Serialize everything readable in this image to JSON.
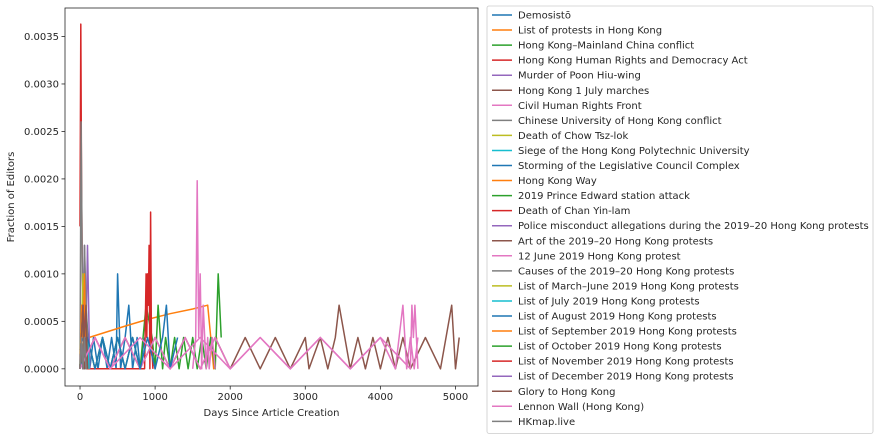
{
  "chart_data": {
    "type": "line",
    "title": "",
    "xlabel": "Days Since Article Creation",
    "ylabel": "Fraction of Editors",
    "xlim": [
      -200,
      5300
    ],
    "ylim": [
      -0.000181,
      0.0038
    ],
    "xticks": [
      0,
      1000,
      2000,
      3000,
      4000,
      5000
    ],
    "yticks": [
      0.0,
      0.0005,
      0.001,
      0.0015,
      0.002,
      0.0025,
      0.003,
      0.0035
    ],
    "ytick_labels": [
      "0.0000",
      "0.0005",
      "0.0010",
      "0.0015",
      "0.0020",
      "0.0025",
      "0.0030",
      "0.0035"
    ],
    "grid": false,
    "legend_position": "outside-right",
    "series": [
      {
        "name": "Demosistō",
        "color": "#1f77b4",
        "x": [
          0,
          40,
          80,
          130,
          180,
          240,
          300,
          360,
          420,
          480,
          500,
          540,
          600,
          650,
          700,
          760,
          800,
          860
        ],
        "y": [
          0.0002,
          0.00033,
          0.00067,
          0.0,
          0.00033,
          0.0,
          0.00033,
          0.0,
          0.00033,
          0.0,
          0.001,
          0.0,
          0.00033,
          0.00067,
          0.0,
          0.00033,
          0.0,
          0.00033
        ]
      },
      {
        "name": "List of protests in Hong Kong",
        "color": "#ff7f0e",
        "x": [
          0,
          20,
          60,
          120,
          600,
          900,
          1200,
          1500,
          1700,
          1780,
          1820
        ],
        "y": [
          0.0,
          0.00033,
          0.0,
          0.00033,
          0.00045,
          0.00052,
          0.00058,
          0.00063,
          0.00067,
          0.0,
          0.00033
        ]
      },
      {
        "name": "Hong Kong–Mainland China conflict",
        "color": "#2ca02c",
        "x": [
          0,
          100,
          200,
          300,
          400,
          500,
          600,
          700,
          800,
          880,
          960,
          1000,
          1040,
          1100,
          1140,
          1200,
          1260,
          1320,
          1380,
          1440,
          1500,
          1560,
          1620,
          1680,
          1740,
          1800,
          1840,
          1880
        ],
        "y": [
          0.0,
          0.00033,
          0.0,
          0.00033,
          0.0,
          0.00033,
          0.0,
          0.00033,
          0.0,
          0.00067,
          0.00033,
          0.0,
          0.00067,
          0.0,
          0.00033,
          0.0,
          0.00033,
          0.0,
          0.00033,
          0.0,
          0.00033,
          0.0,
          0.00033,
          0.0,
          0.00033,
          0.0,
          0.001,
          0.00033
        ]
      },
      {
        "name": "Hong Kong Human Rights and Democracy Act",
        "color": "#d62728",
        "x": [
          0,
          10,
          20,
          30,
          45,
          60,
          80,
          860,
          880,
          890,
          900,
          910,
          920,
          930,
          940,
          950,
          970
        ],
        "y": [
          0.0015,
          0.00363,
          0.002,
          0.001,
          0.00067,
          0.00033,
          0.0,
          0.0,
          0.001,
          0.00033,
          0.001,
          0.00067,
          0.0013,
          0.0,
          0.00165,
          0.00033,
          0.0
        ]
      },
      {
        "name": "Murder of Poon Hiu-wing",
        "color": "#9467bd",
        "x": [
          0,
          20,
          40,
          60,
          80,
          100,
          130
        ],
        "y": [
          0.0,
          0.00033,
          0.00067,
          0.0013,
          0.00033,
          0.0013,
          0.0
        ]
      },
      {
        "name": "Hong Kong 1 July marches",
        "color": "#8c564b",
        "x": [
          0,
          200,
          400,
          600,
          800,
          1000,
          1200,
          1400,
          1600,
          1800,
          2000,
          2200,
          2400,
          2600,
          2800,
          3000,
          3050,
          3200,
          3300,
          3400,
          3450,
          3600,
          3700,
          3800,
          3900,
          4000,
          4100,
          4200,
          4300,
          4400,
          4600,
          4800,
          4950,
          5000,
          5050
        ],
        "y": [
          0.0,
          0.00033,
          0.0,
          0.00033,
          0.0,
          0.00033,
          0.0,
          0.00033,
          0.0,
          0.00033,
          0.0,
          0.00033,
          0.0,
          0.00033,
          0.0,
          0.00033,
          0.0,
          0.00033,
          0.0,
          0.00033,
          0.00067,
          0.0,
          0.00033,
          0.0,
          0.00033,
          0.0,
          0.00033,
          0.0,
          0.00033,
          0.0,
          0.00033,
          0.0,
          0.00067,
          0.0,
          0.00033
        ]
      },
      {
        "name": "Civil Human Rights Front",
        "color": "#e377c2",
        "x": [
          0,
          200,
          400,
          600,
          800,
          1000,
          1200,
          1400,
          1600,
          1800,
          2000,
          2400,
          2800,
          3200,
          3600,
          4000,
          4200,
          4300,
          4350,
          4400,
          4450,
          4500
        ],
        "y": [
          0.0,
          0.00033,
          0.0,
          0.00033,
          0.0,
          0.00033,
          0.0,
          0.00033,
          0.0,
          0.00033,
          0.0,
          0.00033,
          0.0,
          0.00033,
          0.0,
          0.00033,
          0.0,
          0.00067,
          0.0,
          0.00033,
          0.0,
          0.00033
        ]
      },
      {
        "name": "Chinese University of Hong Kong conflict",
        "color": "#7f7f7f",
        "x": [
          0,
          15,
          30,
          45,
          60,
          80,
          100,
          120
        ],
        "y": [
          0.0,
          0.0026,
          0.001,
          0.00033,
          0.0013,
          0.00067,
          0.00033,
          0.0
        ]
      },
      {
        "name": "Death of Chow Tsz-lok",
        "color": "#bcbd22",
        "x": [
          0,
          20,
          40,
          60,
          80,
          100
        ],
        "y": [
          0.0,
          0.00033,
          0.001,
          0.00033,
          0.00067,
          0.0
        ]
      },
      {
        "name": "Siege of the Hong Kong Polytechnic University",
        "color": "#17becf",
        "x": [
          0,
          20,
          40,
          60,
          80,
          100,
          120
        ],
        "y": [
          0.0,
          0.00067,
          0.00033,
          0.001,
          0.0,
          0.00033,
          0.0
        ]
      },
      {
        "name": "Storming of the Legislative Council Complex",
        "color": "#1f77b4",
        "x": [
          0,
          100,
          200,
          300,
          400,
          500,
          600,
          700,
          800,
          900,
          1000,
          1100,
          1150,
          1200,
          1300
        ],
        "y": [
          0.0,
          0.00033,
          0.0,
          0.00033,
          0.0,
          0.00033,
          0.0,
          0.00033,
          0.0,
          0.00033,
          0.0,
          0.00033,
          0.00067,
          0.0,
          0.00033
        ]
      },
      {
        "name": "Hong Kong Way",
        "color": "#ff7f0e",
        "x": [
          0,
          20,
          40,
          60,
          80
        ],
        "y": [
          0.0,
          0.00067,
          0.00033,
          0.001,
          0.0
        ]
      },
      {
        "name": "2019 Prince Edward station attack",
        "color": "#2ca02c",
        "x": [
          0,
          20,
          40,
          60,
          80,
          100
        ],
        "y": [
          0.0,
          0.00033,
          0.00067,
          0.0,
          0.00033,
          0.0
        ]
      },
      {
        "name": "Death of Chan Yin-lam",
        "color": "#d62728",
        "x": [
          0,
          20,
          40,
          60,
          80
        ],
        "y": [
          0.0,
          0.00033,
          0.00067,
          0.00033,
          0.0
        ]
      },
      {
        "name": "Police misconduct allegations during the 2019–20 Hong Kong protests",
        "color": "#9467bd",
        "x": [
          0,
          20,
          40,
          60,
          80,
          100
        ],
        "y": [
          0.0,
          0.00033,
          0.00067,
          0.0,
          0.00033,
          0.0
        ]
      },
      {
        "name": "Art of the 2019–20 Hong Kong protests",
        "color": "#8c564b",
        "x": [
          0,
          20,
          40,
          60,
          80,
          100
        ],
        "y": [
          0.0,
          0.00033,
          0.0,
          0.00033,
          0.00067,
          0.0
        ]
      },
      {
        "name": "12 June 2019 Hong Kong protest",
        "color": "#e377c2",
        "x": [
          1500,
          1540,
          1560,
          1580,
          1600,
          1620,
          1640,
          1660,
          1680,
          1700,
          1720,
          1760,
          1800
        ],
        "y": [
          0.0,
          0.00033,
          0.00198,
          0.00033,
          0.001,
          0.0,
          0.00067,
          0.00033,
          0.0,
          0.00033,
          0.0,
          0.00033,
          0.0
        ]
      },
      {
        "name": "Causes of the 2019–20 Hong Kong protests",
        "color": "#7f7f7f",
        "x": [
          0,
          20,
          40,
          60,
          80
        ],
        "y": [
          0.0,
          0.00033,
          0.0,
          0.00033,
          0.0
        ]
      },
      {
        "name": "List of March–June 2019 Hong Kong protests",
        "color": "#bcbd22",
        "x": [
          0,
          20,
          40,
          60
        ],
        "y": [
          0.0,
          0.00033,
          0.0,
          0.00033
        ]
      },
      {
        "name": "List of July 2019 Hong Kong protests",
        "color": "#17becf",
        "x": [
          0,
          20,
          40,
          60
        ],
        "y": [
          0.0,
          0.00033,
          0.0,
          0.00033
        ]
      },
      {
        "name": "List of August 2019 Hong Kong protests",
        "color": "#1f77b4",
        "x": [
          0,
          20,
          40,
          60
        ],
        "y": [
          0.0,
          0.00033,
          0.0,
          0.00033
        ]
      },
      {
        "name": "List of September 2019 Hong Kong protests",
        "color": "#ff7f0e",
        "x": [
          0,
          20,
          40,
          60
        ],
        "y": [
          0.0,
          0.00033,
          0.0,
          0.00033
        ]
      },
      {
        "name": "List of October 2019 Hong Kong protests",
        "color": "#2ca02c",
        "x": [
          0,
          20,
          40,
          60
        ],
        "y": [
          0.0,
          0.00033,
          0.0,
          0.00033
        ]
      },
      {
        "name": "List of November 2019 Hong Kong protests",
        "color": "#d62728",
        "x": [
          0,
          20,
          40,
          60
        ],
        "y": [
          0.0,
          0.00033,
          0.0,
          0.00033
        ]
      },
      {
        "name": "List of December 2019 Hong Kong protests",
        "color": "#9467bd",
        "x": [
          0,
          20,
          40,
          60
        ],
        "y": [
          0.0,
          0.00033,
          0.0,
          0.00033
        ]
      },
      {
        "name": "Glory to Hong Kong",
        "color": "#8c564b",
        "x": [
          0,
          20,
          40,
          60,
          80
        ],
        "y": [
          0.0,
          0.00033,
          0.00067,
          0.0,
          0.00033
        ]
      },
      {
        "name": "Lennon Wall (Hong Kong)",
        "color": "#e377c2",
        "x": [
          0,
          200,
          400,
          800,
          1200,
          1600,
          2000,
          2400,
          2800,
          3200,
          3600,
          4000,
          4400,
          4420,
          4440,
          4460,
          4500
        ],
        "y": [
          0.0,
          0.00033,
          0.0,
          0.00033,
          0.0,
          0.00033,
          0.0,
          0.00033,
          0.0,
          0.00033,
          0.0,
          0.00033,
          0.0,
          0.00067,
          0.00033,
          0.00067,
          0.0
        ]
      },
      {
        "name": "HKmap.live",
        "color": "#7f7f7f",
        "x": [
          0,
          20,
          40,
          60,
          80
        ],
        "y": [
          0.0,
          0.00033,
          0.0,
          0.00033,
          0.0
        ]
      }
    ]
  }
}
